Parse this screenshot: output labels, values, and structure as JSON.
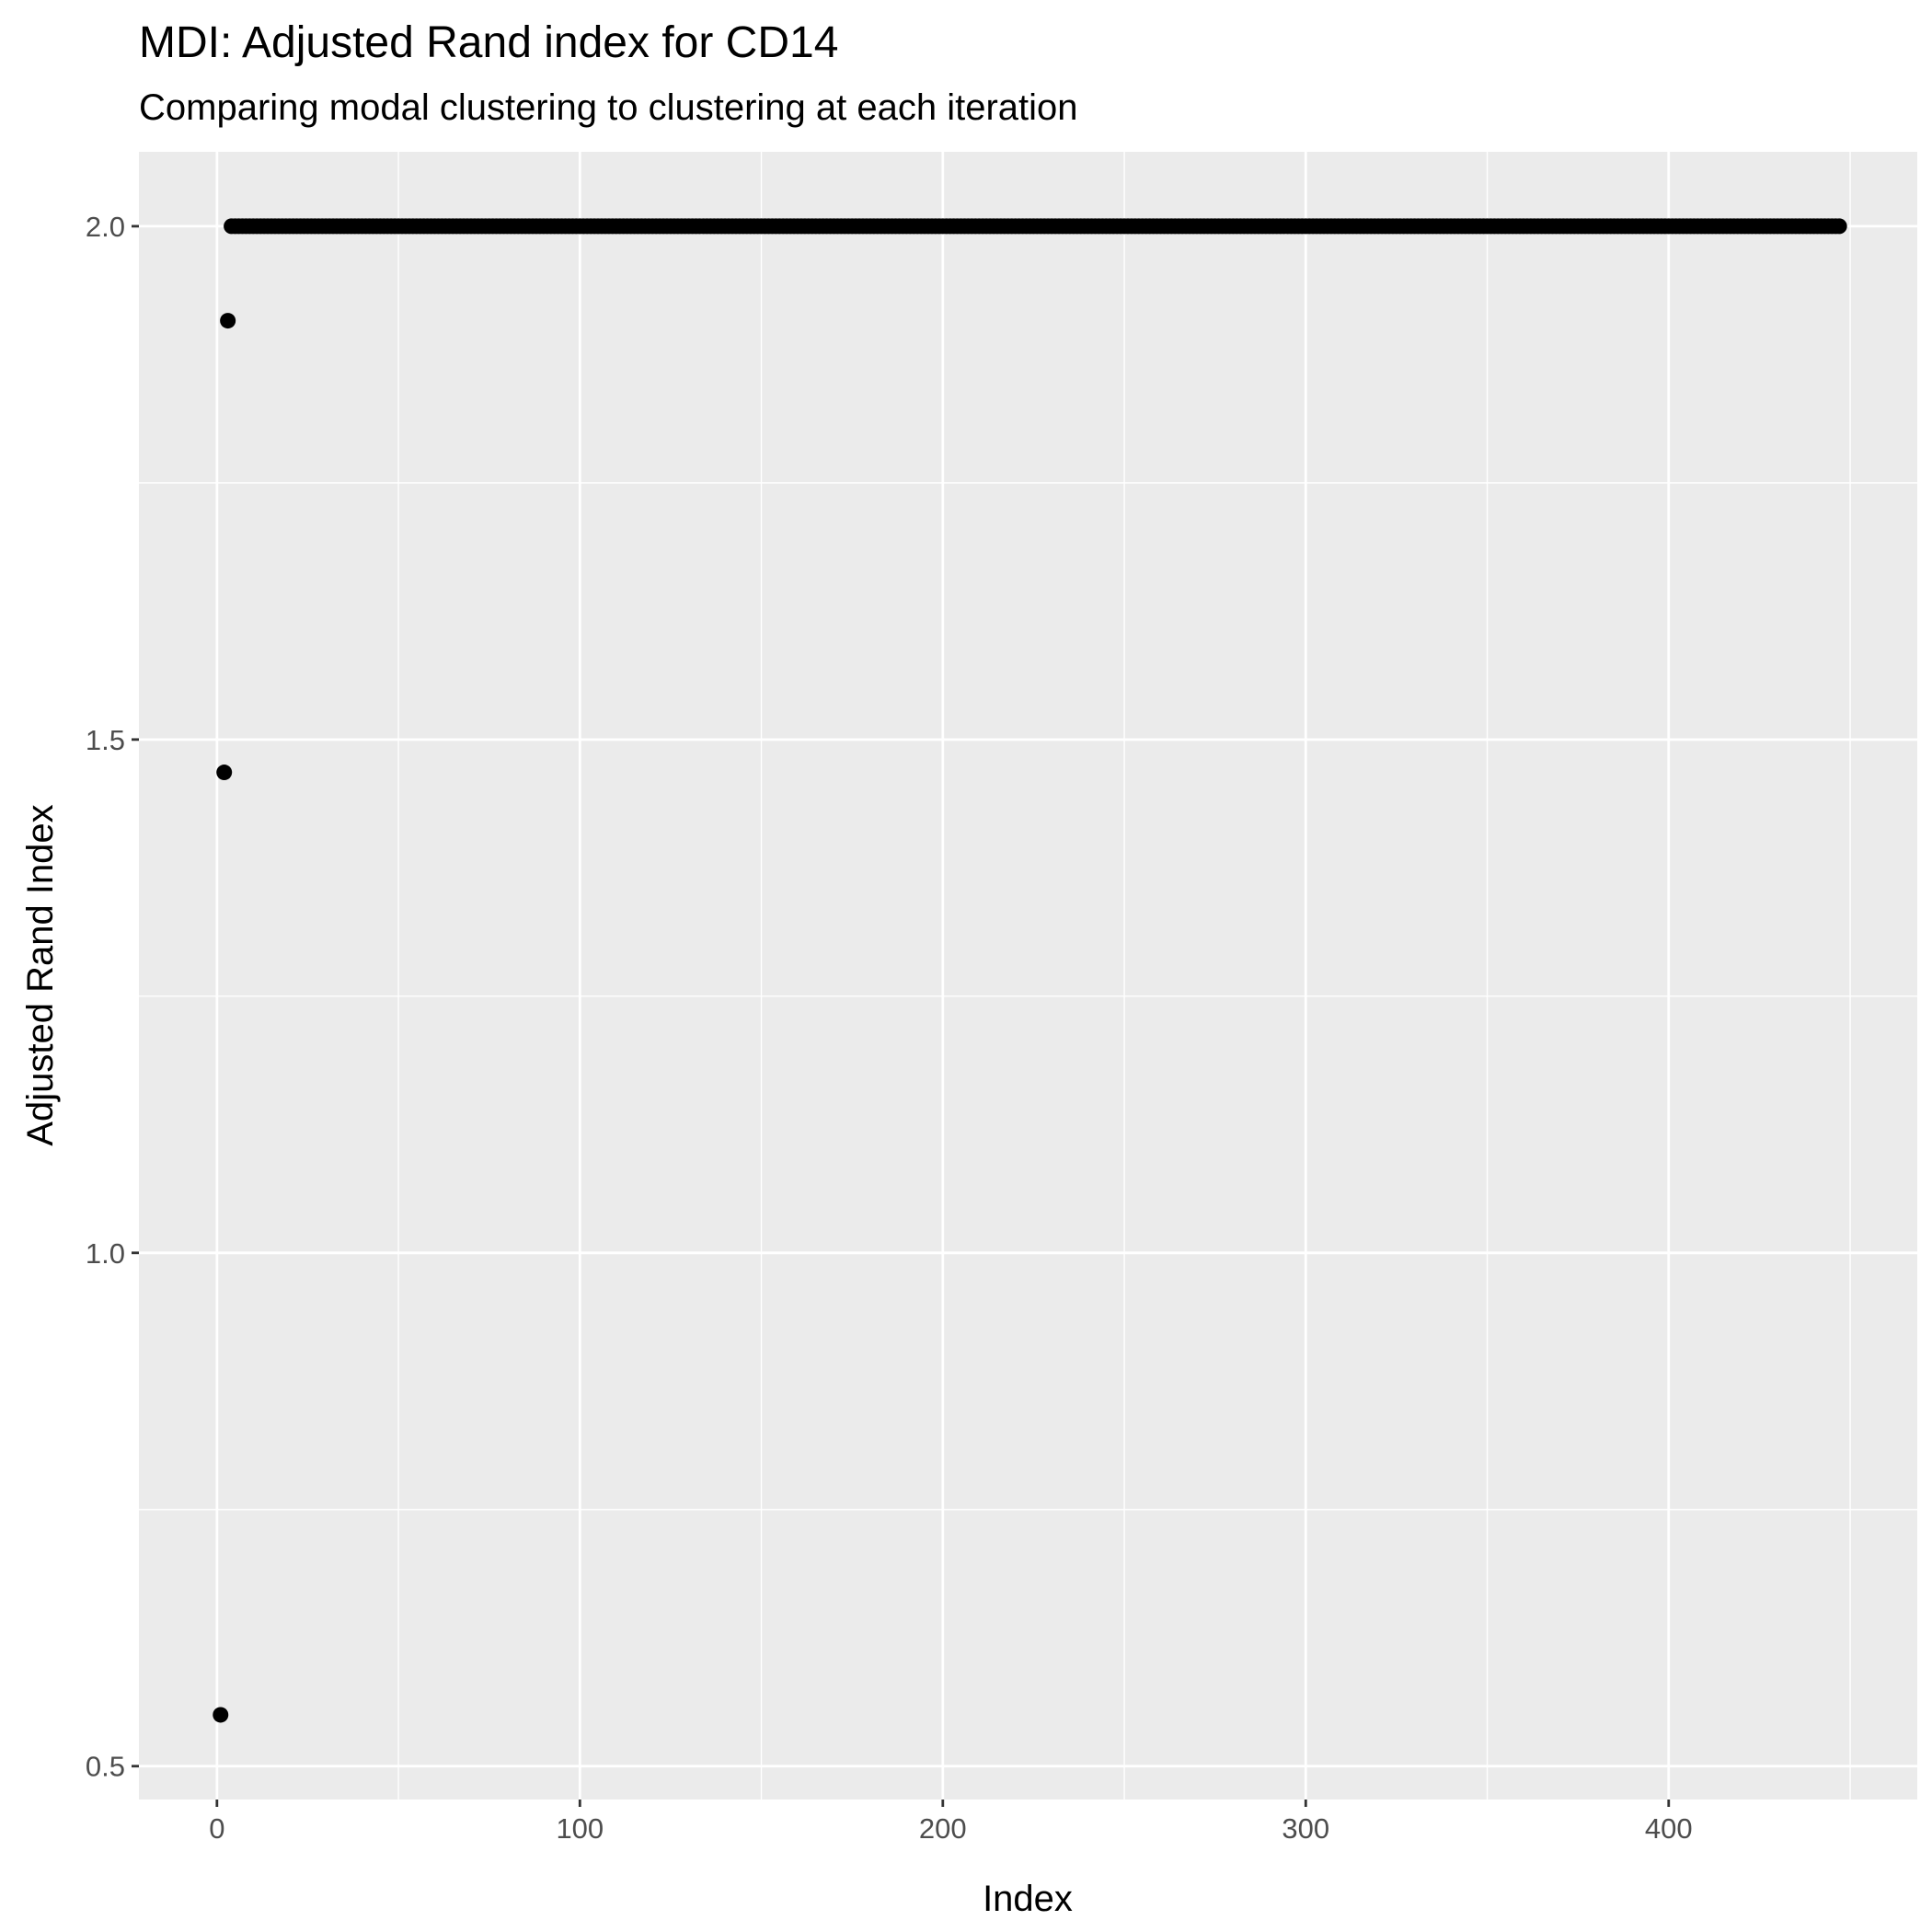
{
  "chart_data": {
    "type": "scatter",
    "title": "MDI: Adjusted Rand index for CD14",
    "subtitle": "Comparing modal clustering to clustering at each iteration",
    "xlabel": "Index",
    "ylabel": "Adjusted Rand Index",
    "xlim": [
      -21.5,
      468.5
    ],
    "ylim": [
      0.4675,
      2.0725
    ],
    "x_ticks": [
      0,
      100,
      200,
      300,
      400
    ],
    "x_tick_labels": [
      "0",
      "100",
      "200",
      "300",
      "400"
    ],
    "y_ticks": [
      0.5,
      1.0,
      1.5,
      2.0
    ],
    "y_tick_labels": [
      "0.5",
      "1.0",
      "1.5",
      "2.0"
    ],
    "grid": true,
    "legend": "none",
    "series": [
      {
        "points": [
          {
            "x": 1,
            "y": 0.55
          },
          {
            "x": 2,
            "y": 1.468
          },
          {
            "x": 3,
            "y": 1.908
          }
        ],
        "constant_run": {
          "x_start": 4,
          "x_end": 447,
          "y": 2.0
        }
      }
    ],
    "colors": {
      "panel_background": "#ebebeb",
      "grid_major": "#ffffff",
      "point": "#000000",
      "tick": "#333333"
    }
  }
}
